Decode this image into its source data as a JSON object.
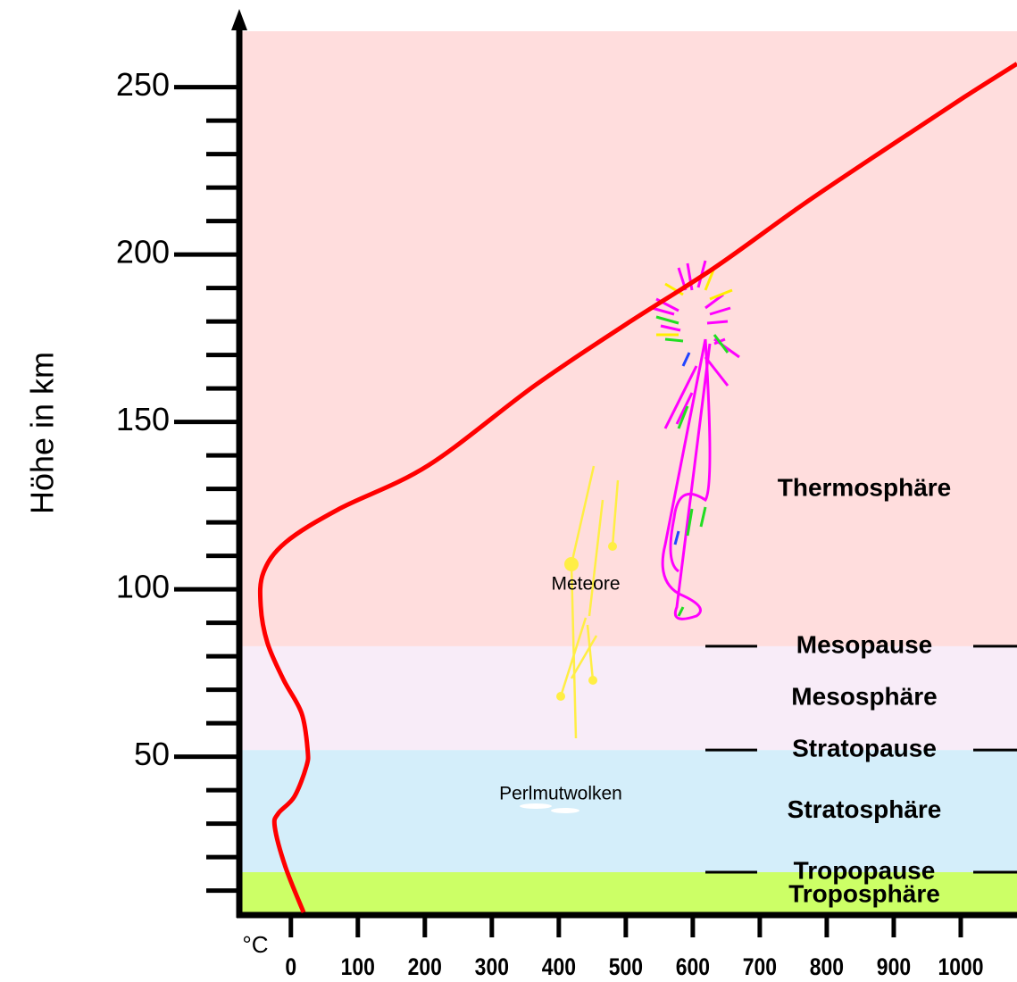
{
  "chart_data": {
    "type": "line",
    "y_label": "Höhe in km",
    "x_label": "°C",
    "x": [
      19,
      -8,
      -24,
      -19,
      5,
      23,
      25,
      16,
      -11,
      -35,
      -45,
      -41,
      -8,
      72,
      205,
      365,
      499,
      632,
      765,
      899,
      1005,
      1084
    ],
    "values": [
      3.5,
      17,
      29,
      33,
      38,
      47,
      52,
      63,
      73,
      84,
      95,
      105,
      114,
      124,
      137,
      161,
      179,
      196,
      215,
      233,
      247,
      257
    ],
    "color": "#ff0000",
    "xlim": [
      -77,
      1084
    ],
    "ylim": [
      2.7,
      266.7
    ],
    "xticks": [
      0,
      100,
      200,
      300,
      400,
      500,
      600,
      700,
      800,
      900,
      1000
    ],
    "yticks": [
      50,
      100,
      150,
      200,
      250
    ],
    "y_minor_ticks": [
      10,
      20,
      30,
      40,
      60,
      70,
      80,
      90,
      110,
      120,
      130,
      140,
      160,
      170,
      180,
      190,
      210,
      220,
      230,
      240
    ],
    "layers": [
      {
        "name": "Troposphäre",
        "from": 2.7,
        "to": 15.5,
        "color": "#ccff66"
      },
      {
        "name": "Stratosphäre",
        "from": 15.5,
        "to": 52,
        "color": "#d4eefa"
      },
      {
        "name": "Mesosphäre",
        "from": 52,
        "to": 83,
        "color": "#f8ecf8"
      },
      {
        "name": "Thermosphäre",
        "from": 83,
        "to": 266.7,
        "color": "#ffdddd"
      }
    ],
    "boundaries": [
      {
        "name": "Tropopause",
        "km": 15.5
      },
      {
        "name": "Stratopause",
        "km": 52
      },
      {
        "name": "Mesopause",
        "km": 83
      }
    ],
    "annotations": [
      "Meteore",
      "Perlmutwolken"
    ]
  }
}
